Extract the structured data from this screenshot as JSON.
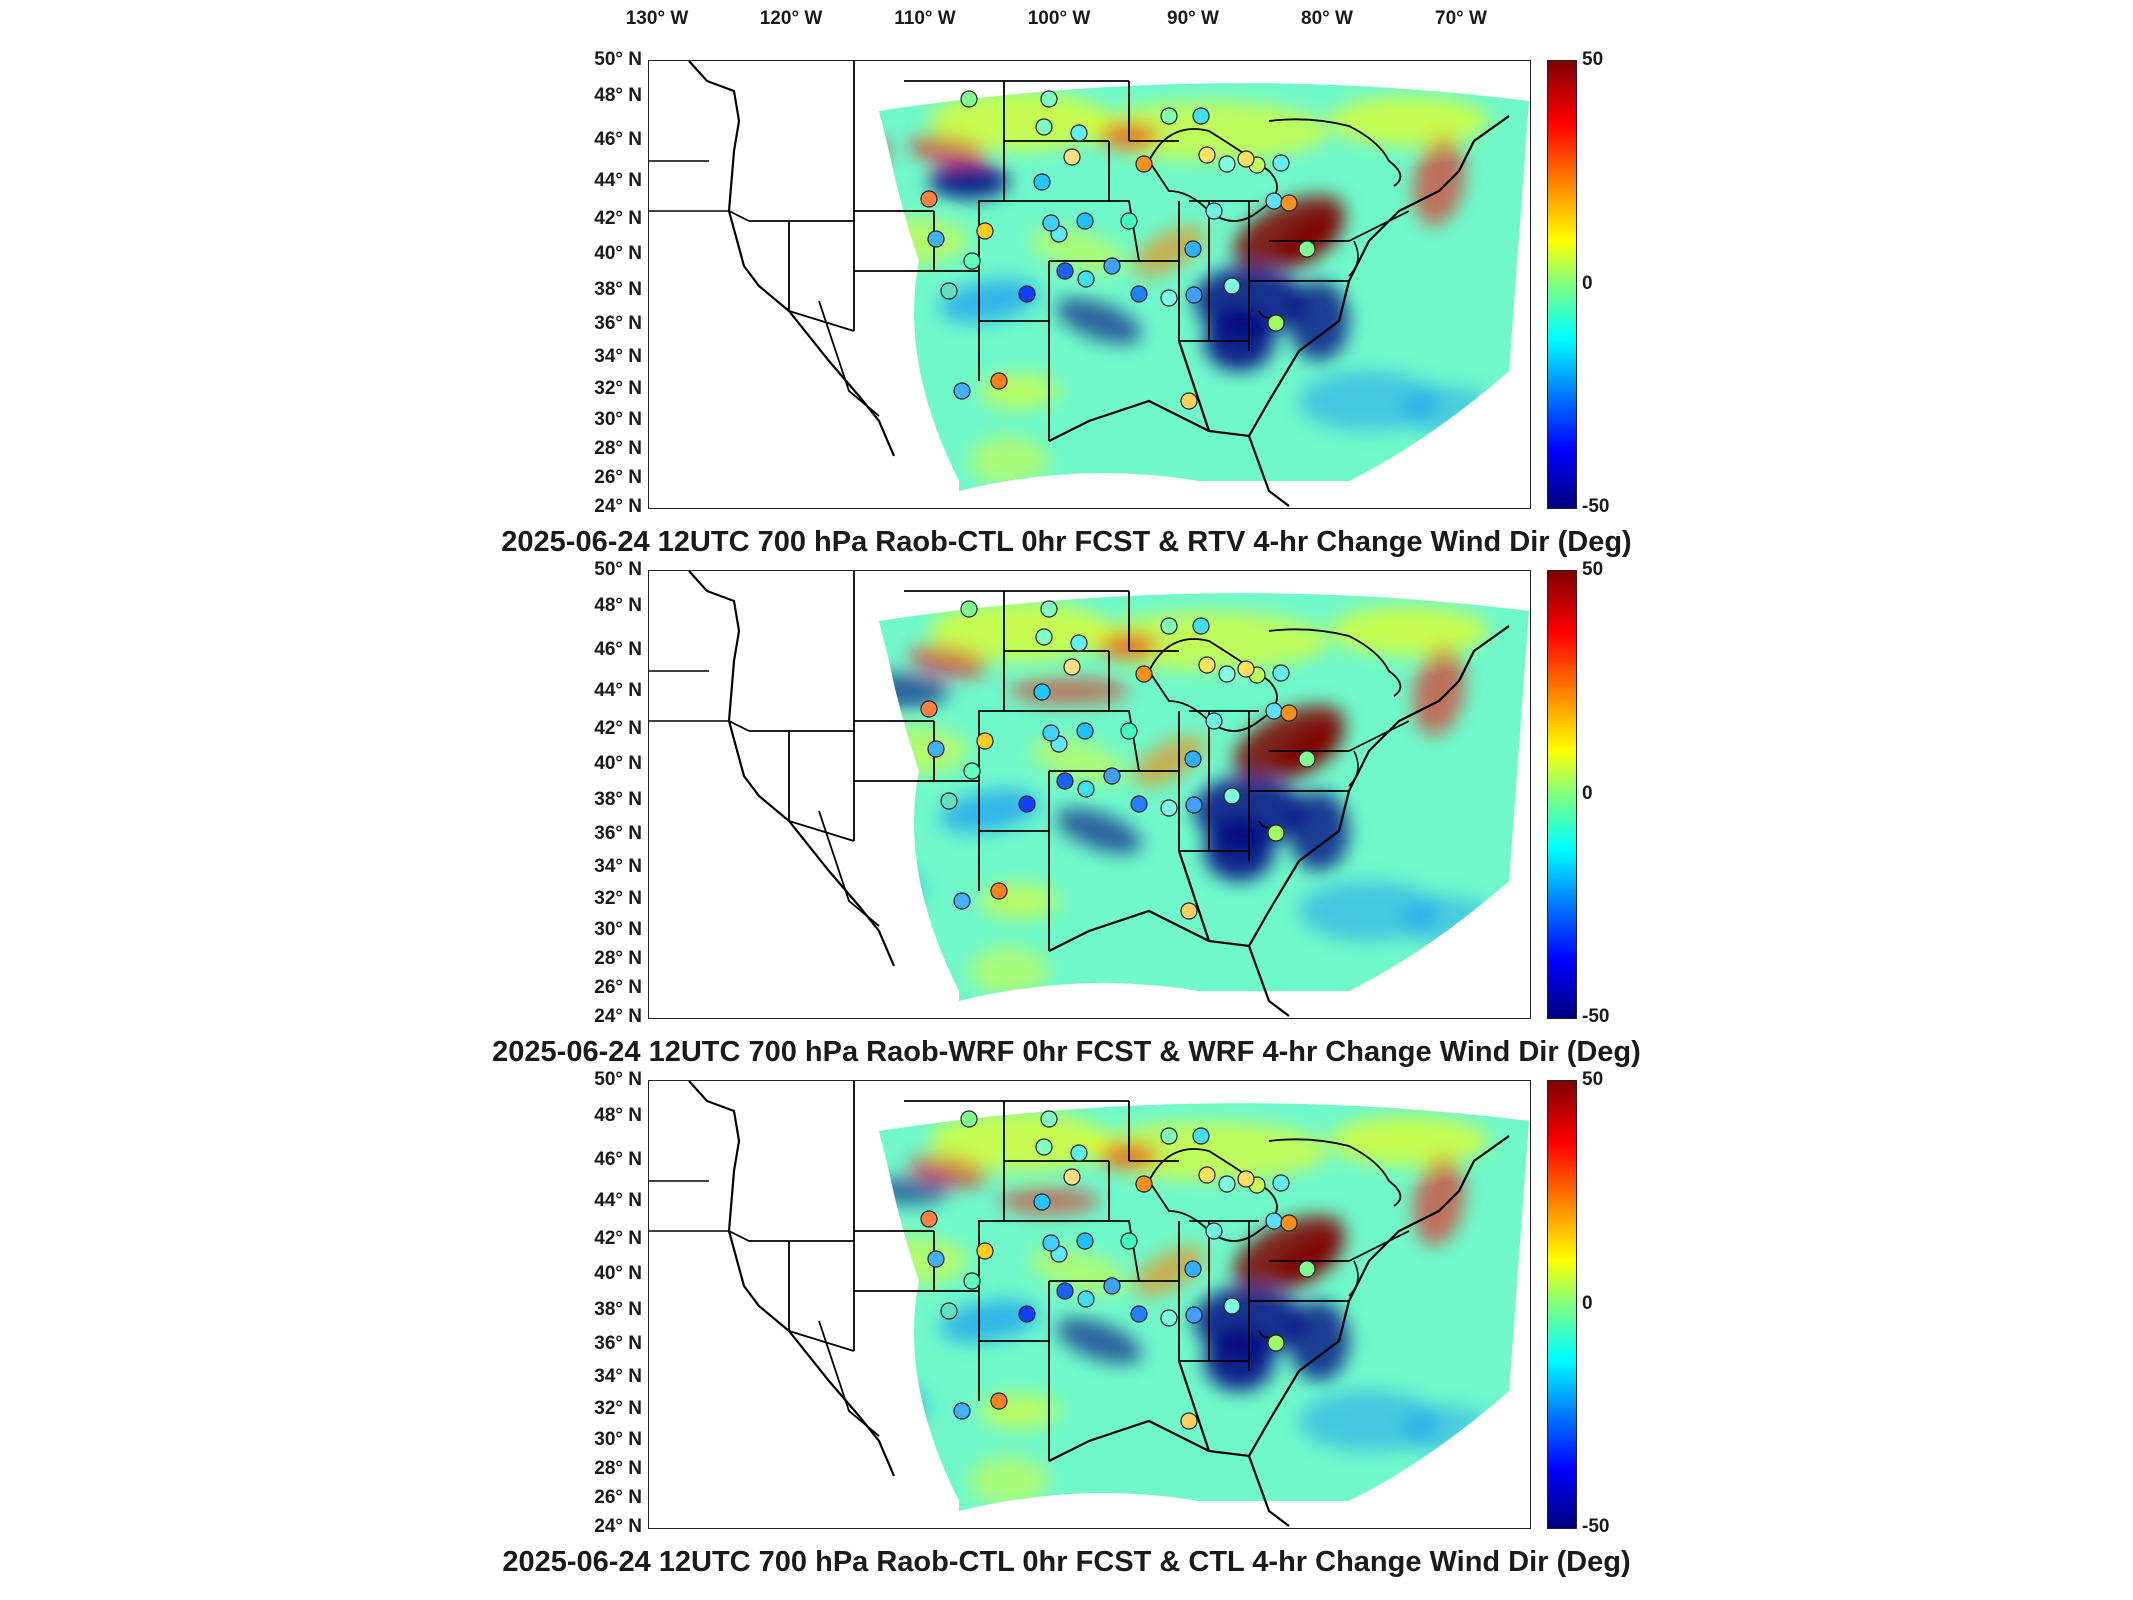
{
  "lon_labels": [
    "130° W",
    "120° W",
    "110° W",
    "100° W",
    "90° W",
    "80° W",
    "70° W"
  ],
  "lat_labels": [
    "50° N",
    "48° N",
    "46° N",
    "44° N",
    "42° N",
    "40° N",
    "38° N",
    "36° N",
    "34° N",
    "32° N",
    "30° N",
    "28° N",
    "26° N",
    "24° N"
  ],
  "colorbar": {
    "max_label": "50",
    "mid_label": "0",
    "min_label": "-50",
    "range": [
      -50,
      50
    ],
    "colormap": "jet"
  },
  "panels": [
    {
      "title": "2025-06-24 12UTC 700 hPa Raob-CTL 0hr FCST & RTV 4-hr Change Wind Dir (Deg)"
    },
    {
      "title": "2025-06-24 12UTC 700 hPa Raob-WRF 0hr FCST & WRF 4-hr Change Wind Dir (Deg)"
    },
    {
      "title": "2025-06-24 12UTC 700 hPa Raob-CTL 0hr FCST & CTL 4-hr Change Wind Dir (Deg)"
    }
  ],
  "colors": {
    "dark_red": "#800000",
    "red": "#ff0000",
    "orange": "#ff8000",
    "yellow": "#ffff00",
    "green": "#80ff80",
    "cyan": "#00ffff",
    "blue": "#0080ff",
    "dark_blue": "#000080"
  }
}
